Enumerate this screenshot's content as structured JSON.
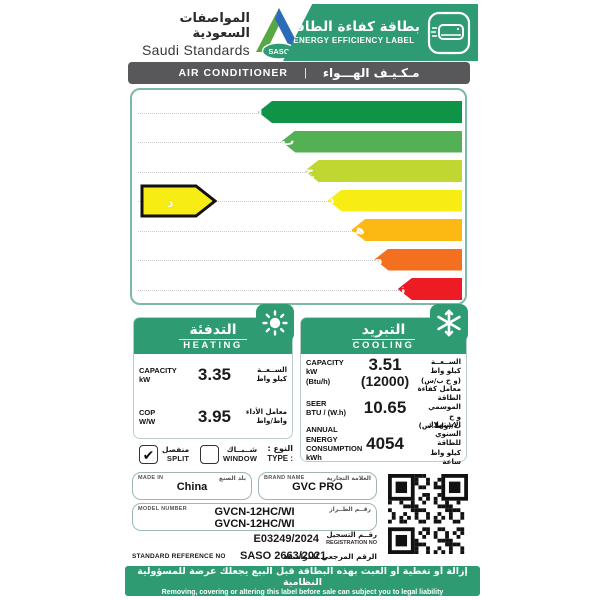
{
  "colors": {
    "brand_green": "#2E9B73",
    "bar_gray": "#58585A",
    "pointer_yellow": "#FFF200",
    "pointer_border": "#111111"
  },
  "header": {
    "authority_ar": "المواصفات السعودية",
    "authority_en": "Saudi Standards",
    "logo_text": "SASO",
    "label_title_ar": "بطاقة كفاءة الطاقة",
    "label_title_en": "ENERGY EFFICIENCY LABEL"
  },
  "product_bar": {
    "en": "AIR CONDITIONER",
    "divider": "|",
    "ar": "مـكـيـف الهـــواء"
  },
  "rating_scale": {
    "grades": [
      {
        "letter": "أ",
        "color": "#0E9347"
      },
      {
        "letter": "ب",
        "color": "#54B054"
      },
      {
        "letter": "ج",
        "color": "#BFD730"
      },
      {
        "letter": "د",
        "color": "#F7EC13"
      },
      {
        "letter": "هـ",
        "color": "#FDB913"
      },
      {
        "letter": "و",
        "color": "#F37021"
      },
      {
        "letter": "ز",
        "color": "#ED1C24"
      }
    ],
    "current_grade": "د",
    "current_grade_index": 3
  },
  "heating": {
    "title_ar": "التدفئة",
    "title_en": "HEATING",
    "rows": [
      {
        "en1": "CAPACITY",
        "en2": "kW",
        "value": "3.35",
        "ar1": "الســعــة",
        "ar2": "كيلو واط"
      },
      {
        "en1": "COP",
        "en2": "W/W",
        "value": "3.95",
        "ar1": "معامل الأداء",
        "ar2": "واط/واط"
      }
    ]
  },
  "cooling": {
    "title_ar": "التبريد",
    "title_en": "COOLING",
    "rows": [
      {
        "en1": "CAPACITY",
        "en2": "kW",
        "en3": "(Btu/h)",
        "value": "3.51",
        "value2": "(12000)",
        "ar1": "الســعــة",
        "ar2": "كيلو واط",
        "ar3": "(و ح ب/س)"
      },
      {
        "en1": "SEER",
        "en2": "BTU / (W.h)",
        "en3": "",
        "value": "10.65",
        "value2": "",
        "ar1": "معامل كفاءة الطاقة الموسمي",
        "ar2": "و ح ب/(واط.س)",
        "ar3": ""
      },
      {
        "en1": "ANNUAL ENERGY",
        "en2": "CONSUMPTION",
        "en3": "kWh",
        "value": "4054",
        "value2": "",
        "ar1": "الاستهلاك السنوي",
        "ar2": "للطاقة",
        "ar3": "كيلو واط ساعة"
      }
    ]
  },
  "type": {
    "label_ar": "النوع :",
    "label_en": "TYPE :",
    "options": [
      {
        "ar": "منفصل",
        "en": "SPLIT",
        "mark": "✔",
        "checked": true
      },
      {
        "ar": "شــبــاك",
        "en": "WINDOW",
        "mark": "",
        "checked": false
      }
    ]
  },
  "info": {
    "made_in": {
      "label_en": "MADE IN",
      "label_ar": "بلد الصنع",
      "value": "China"
    },
    "brand": {
      "label_en": "BRAND  NAME",
      "label_ar": "العلامة التجارية",
      "value": "GVC PRO"
    },
    "model": {
      "label_en": "MODEL  NUMBER",
      "label_ar": "رقــم الطــراز",
      "value_line1": "GVCN-12HC/WI",
      "value_line2": "GVCN-12HC/WI"
    }
  },
  "registration": {
    "value": "E03249/2024",
    "label_ar": "رقــم التسجيل",
    "label_en": "REGISTRATION NO"
  },
  "standard": {
    "label_en": "STANDARD REFERENCE NO",
    "value": "SASO 2663/2021",
    "label_ar": "الرقم المرجعي للمواصفة"
  },
  "footer": {
    "ar": "إزالة أو تغطية أو العبث بهذه البطاقة قبل البيع يجعلك عرضة للمسؤولية النظامية",
    "en": "Removing, covering or altering this label before sale can subject you to legal liability"
  }
}
